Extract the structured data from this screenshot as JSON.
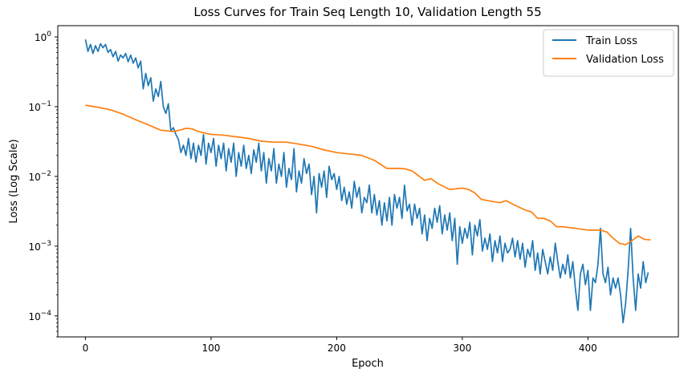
{
  "chart_data": {
    "type": "line",
    "title": "Loss Curves for Train Seq Length 10, Validation Length 55",
    "xlabel": "Epoch",
    "ylabel": "Loss (Log Scale)",
    "xlim": [
      -22,
      472
    ],
    "ylim": [
      5e-05,
      1.45
    ],
    "yscale": "log",
    "grid": false,
    "legend_position": "top-right",
    "x_ticks": [
      {
        "value": 0,
        "label": "0"
      },
      {
        "value": 100,
        "label": "100"
      },
      {
        "value": 200,
        "label": "200"
      },
      {
        "value": 300,
        "label": "300"
      },
      {
        "value": 400,
        "label": "400"
      }
    ],
    "y_ticks": [
      {
        "value": 0.0001,
        "base": "10",
        "exp": "−4"
      },
      {
        "value": 0.001,
        "base": "10",
        "exp": "−3"
      },
      {
        "value": 0.01,
        "base": "10",
        "exp": "−2"
      },
      {
        "value": 0.1,
        "base": "10",
        "exp": "−1"
      },
      {
        "value": 1,
        "base": "10",
        "exp": "0"
      }
    ],
    "series": [
      {
        "name": "Train Loss",
        "color": "#1f77b4",
        "points": [
          [
            0,
            0.92
          ],
          [
            2,
            0.62
          ],
          [
            4,
            0.78
          ],
          [
            6,
            0.58
          ],
          [
            8,
            0.75
          ],
          [
            10,
            0.62
          ],
          [
            12,
            0.8
          ],
          [
            14,
            0.7
          ],
          [
            16,
            0.78
          ],
          [
            18,
            0.6
          ],
          [
            20,
            0.66
          ],
          [
            22,
            0.52
          ],
          [
            24,
            0.62
          ],
          [
            26,
            0.45
          ],
          [
            28,
            0.55
          ],
          [
            30,
            0.5
          ],
          [
            32,
            0.58
          ],
          [
            34,
            0.44
          ],
          [
            36,
            0.55
          ],
          [
            38,
            0.42
          ],
          [
            40,
            0.5
          ],
          [
            42,
            0.36
          ],
          [
            44,
            0.45
          ],
          [
            46,
            0.18
          ],
          [
            48,
            0.3
          ],
          [
            50,
            0.2
          ],
          [
            52,
            0.26
          ],
          [
            54,
            0.12
          ],
          [
            56,
            0.18
          ],
          [
            58,
            0.14
          ],
          [
            60,
            0.23
          ],
          [
            62,
            0.1
          ],
          [
            64,
            0.08
          ],
          [
            66,
            0.11
          ],
          [
            68,
            0.045
          ],
          [
            70,
            0.05
          ],
          [
            72,
            0.04
          ],
          [
            74,
            0.034
          ],
          [
            76,
            0.022
          ],
          [
            78,
            0.028
          ],
          [
            80,
            0.02
          ],
          [
            82,
            0.035
          ],
          [
            84,
            0.018
          ],
          [
            86,
            0.03
          ],
          [
            88,
            0.016
          ],
          [
            90,
            0.028
          ],
          [
            92,
            0.02
          ],
          [
            94,
            0.04
          ],
          [
            96,
            0.015
          ],
          [
            98,
            0.03
          ],
          [
            100,
            0.022
          ],
          [
            102,
            0.035
          ],
          [
            104,
            0.014
          ],
          [
            106,
            0.028
          ],
          [
            108,
            0.018
          ],
          [
            110,
            0.03
          ],
          [
            112,
            0.012
          ],
          [
            114,
            0.025
          ],
          [
            116,
            0.016
          ],
          [
            118,
            0.03
          ],
          [
            120,
            0.01
          ],
          [
            122,
            0.022
          ],
          [
            124,
            0.014
          ],
          [
            126,
            0.028
          ],
          [
            128,
            0.013
          ],
          [
            130,
            0.02
          ],
          [
            132,
            0.011
          ],
          [
            134,
            0.024
          ],
          [
            136,
            0.016
          ],
          [
            138,
            0.03
          ],
          [
            140,
            0.012
          ],
          [
            142,
            0.022
          ],
          [
            144,
            0.008
          ],
          [
            146,
            0.018
          ],
          [
            148,
            0.012
          ],
          [
            150,
            0.025
          ],
          [
            152,
            0.008
          ],
          [
            154,
            0.015
          ],
          [
            156,
            0.01
          ],
          [
            158,
            0.022
          ],
          [
            160,
            0.007
          ],
          [
            162,
            0.013
          ],
          [
            164,
            0.009
          ],
          [
            166,
            0.025
          ],
          [
            168,
            0.006
          ],
          [
            170,
            0.012
          ],
          [
            172,
            0.008
          ],
          [
            174,
            0.018
          ],
          [
            176,
            0.011
          ],
          [
            178,
            0.015
          ],
          [
            180,
            0.0055
          ],
          [
            182,
            0.01
          ],
          [
            184,
            0.003
          ],
          [
            186,
            0.011
          ],
          [
            188,
            0.007
          ],
          [
            190,
            0.012
          ],
          [
            192,
            0.005
          ],
          [
            194,
            0.014
          ],
          [
            196,
            0.009
          ],
          [
            198,
            0.011
          ],
          [
            200,
            0.0065
          ],
          [
            202,
            0.01
          ],
          [
            204,
            0.0045
          ],
          [
            206,
            0.007
          ],
          [
            208,
            0.004
          ],
          [
            210,
            0.006
          ],
          [
            212,
            0.0035
          ],
          [
            214,
            0.0085
          ],
          [
            216,
            0.005
          ],
          [
            218,
            0.007
          ],
          [
            220,
            0.003
          ],
          [
            222,
            0.005
          ],
          [
            224,
            0.0042
          ],
          [
            226,
            0.0075
          ],
          [
            228,
            0.003
          ],
          [
            230,
            0.0055
          ],
          [
            232,
            0.0028
          ],
          [
            234,
            0.0045
          ],
          [
            236,
            0.002
          ],
          [
            238,
            0.0042
          ],
          [
            240,
            0.0023
          ],
          [
            242,
            0.005
          ],
          [
            244,
            0.002
          ],
          [
            246,
            0.0055
          ],
          [
            248,
            0.0035
          ],
          [
            250,
            0.005
          ],
          [
            252,
            0.0025
          ],
          [
            254,
            0.0075
          ],
          [
            256,
            0.0032
          ],
          [
            258,
            0.004
          ],
          [
            260,
            0.002
          ],
          [
            262,
            0.004
          ],
          [
            264,
            0.0025
          ],
          [
            266,
            0.0035
          ],
          [
            268,
            0.0015
          ],
          [
            270,
            0.0028
          ],
          [
            272,
            0.0012
          ],
          [
            274,
            0.0025
          ],
          [
            276,
            0.0018
          ],
          [
            278,
            0.0035
          ],
          [
            280,
            0.0022
          ],
          [
            282,
            0.0038
          ],
          [
            284,
            0.0015
          ],
          [
            286,
            0.0028
          ],
          [
            288,
            0.0017
          ],
          [
            290,
            0.003
          ],
          [
            292,
            0.0012
          ],
          [
            294,
            0.0025
          ],
          [
            296,
            0.00055
          ],
          [
            298,
            0.0019
          ],
          [
            300,
            0.0011
          ],
          [
            302,
            0.0018
          ],
          [
            304,
            0.0013
          ],
          [
            306,
            0.0022
          ],
          [
            308,
            0.00075
          ],
          [
            310,
            0.002
          ],
          [
            312,
            0.0014
          ],
          [
            314,
            0.0024
          ],
          [
            316,
            0.00085
          ],
          [
            318,
            0.0013
          ],
          [
            320,
            0.0009
          ],
          [
            322,
            0.0015
          ],
          [
            324,
            0.0006
          ],
          [
            326,
            0.0012
          ],
          [
            328,
            0.0008
          ],
          [
            330,
            0.0014
          ],
          [
            332,
            0.0006
          ],
          [
            334,
            0.0011
          ],
          [
            336,
            0.0008
          ],
          [
            338,
            0.0009
          ],
          [
            340,
            0.0013
          ],
          [
            342,
            0.0007
          ],
          [
            344,
            0.0012
          ],
          [
            346,
            0.00065
          ],
          [
            348,
            0.0011
          ],
          [
            350,
            0.0005
          ],
          [
            352,
            0.0009
          ],
          [
            354,
            0.0007
          ],
          [
            356,
            0.0012
          ],
          [
            358,
            0.00045
          ],
          [
            360,
            0.0008
          ],
          [
            362,
            0.0004
          ],
          [
            364,
            0.0009
          ],
          [
            366,
            0.0006
          ],
          [
            368,
            0.0004
          ],
          [
            370,
            0.0007
          ],
          [
            372,
            0.00045
          ],
          [
            374,
            0.0011
          ],
          [
            376,
            0.0006
          ],
          [
            378,
            0.00035
          ],
          [
            380,
            0.00055
          ],
          [
            382,
            0.0004
          ],
          [
            384,
            0.00075
          ],
          [
            386,
            0.00035
          ],
          [
            388,
            0.0006
          ],
          [
            390,
            0.00025
          ],
          [
            392,
            0.00012
          ],
          [
            394,
            0.0004
          ],
          [
            396,
            0.00055
          ],
          [
            398,
            0.00028
          ],
          [
            400,
            0.00045
          ],
          [
            402,
            0.00012
          ],
          [
            404,
            0.00035
          ],
          [
            406,
            0.0003
          ],
          [
            408,
            0.00055
          ],
          [
            410,
            0.0018
          ],
          [
            412,
            0.0004
          ],
          [
            414,
            0.0003
          ],
          [
            416,
            0.0005
          ],
          [
            418,
            0.0002
          ],
          [
            420,
            0.00035
          ],
          [
            422,
            0.00025
          ],
          [
            424,
            0.00035
          ],
          [
            426,
            0.0002
          ],
          [
            428,
            8e-05
          ],
          [
            430,
            0.00015
          ],
          [
            432,
            0.00045
          ],
          [
            434,
            0.0018
          ],
          [
            436,
            0.00035
          ],
          [
            438,
            0.00012
          ],
          [
            440,
            0.0004
          ],
          [
            442,
            0.00025
          ],
          [
            444,
            0.0006
          ],
          [
            446,
            0.0003
          ],
          [
            448,
            0.00042
          ]
        ]
      },
      {
        "name": "Validation Loss",
        "color": "#ff7f0e",
        "points": [
          [
            0,
            0.105
          ],
          [
            10,
            0.098
          ],
          [
            20,
            0.09
          ],
          [
            30,
            0.078
          ],
          [
            40,
            0.065
          ],
          [
            50,
            0.055
          ],
          [
            60,
            0.046
          ],
          [
            70,
            0.044
          ],
          [
            75,
            0.046
          ],
          [
            80,
            0.049
          ],
          [
            85,
            0.048
          ],
          [
            90,
            0.044
          ],
          [
            100,
            0.04
          ],
          [
            110,
            0.039
          ],
          [
            120,
            0.037
          ],
          [
            130,
            0.035
          ],
          [
            140,
            0.032
          ],
          [
            150,
            0.031
          ],
          [
            160,
            0.031
          ],
          [
            170,
            0.029
          ],
          [
            180,
            0.027
          ],
          [
            190,
            0.024
          ],
          [
            200,
            0.022
          ],
          [
            210,
            0.021
          ],
          [
            220,
            0.02
          ],
          [
            230,
            0.017
          ],
          [
            240,
            0.013
          ],
          [
            250,
            0.013
          ],
          [
            255,
            0.0128
          ],
          [
            260,
            0.012
          ],
          [
            270,
            0.0088
          ],
          [
            275,
            0.0093
          ],
          [
            280,
            0.008
          ],
          [
            290,
            0.0065
          ],
          [
            300,
            0.0068
          ],
          [
            305,
            0.0065
          ],
          [
            310,
            0.0058
          ],
          [
            315,
            0.0047
          ],
          [
            320,
            0.0045
          ],
          [
            330,
            0.0042
          ],
          [
            335,
            0.0045
          ],
          [
            340,
            0.004
          ],
          [
            350,
            0.0033
          ],
          [
            355,
            0.0031
          ],
          [
            360,
            0.0025
          ],
          [
            365,
            0.0025
          ],
          [
            370,
            0.0023
          ],
          [
            375,
            0.0019
          ],
          [
            380,
            0.0019
          ],
          [
            390,
            0.0018
          ],
          [
            400,
            0.0017
          ],
          [
            410,
            0.0017
          ],
          [
            415,
            0.0016
          ],
          [
            420,
            0.0013
          ],
          [
            425,
            0.0011
          ],
          [
            430,
            0.00105
          ],
          [
            435,
            0.0012
          ],
          [
            440,
            0.0014
          ],
          [
            445,
            0.00125
          ],
          [
            450,
            0.00123
          ]
        ]
      }
    ]
  }
}
